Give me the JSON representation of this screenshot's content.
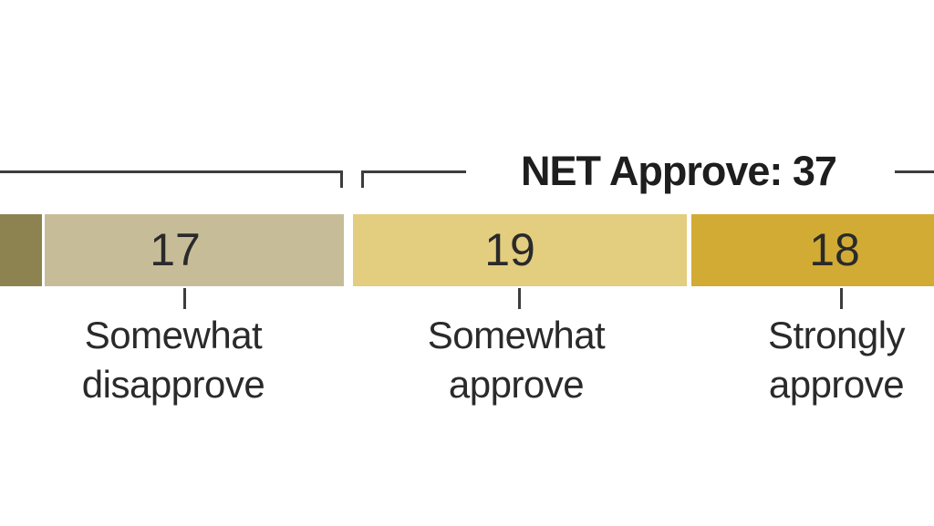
{
  "chart_data": {
    "type": "bar",
    "orientation": "horizontal_stacked",
    "background": "#ffffff",
    "text_color": "#2a2a2a",
    "line_color": "#3d3d3d",
    "net_annotation": {
      "text": "NET Approve: 37",
      "value": 37,
      "spans": [
        "Somewhat approve",
        "Strongly approve"
      ]
    },
    "segments": [
      {
        "label": "",
        "color": "#8d8350"
      },
      {
        "label": "Somewhat disapprove",
        "label_lines": [
          "Somewhat",
          "disapprove"
        ],
        "value": 17,
        "color": "#c6bd98"
      },
      {
        "label": "Somewhat approve",
        "label_lines": [
          "Somewhat",
          "approve"
        ],
        "value": 19,
        "color": "#e3cd7e"
      },
      {
        "label": "Strongly approve",
        "label_lines": [
          "Strongly",
          "approve"
        ],
        "value": 18,
        "color": "#d1ab33"
      }
    ]
  }
}
